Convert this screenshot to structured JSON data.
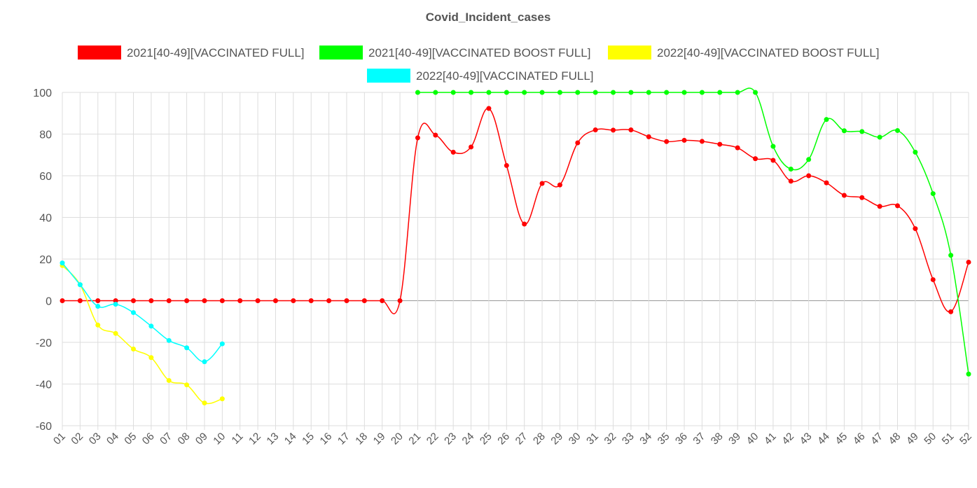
{
  "chart_data": {
    "type": "line",
    "title": "Covid_Incident_cases",
    "xlabel": "",
    "ylabel": "",
    "ylim": [
      -60,
      100
    ],
    "yticks": [
      100,
      80,
      60,
      40,
      20,
      0,
      -20,
      -40,
      -60
    ],
    "grid": true,
    "legend_position": "top",
    "categories": [
      "01",
      "02",
      "03",
      "04",
      "05",
      "06",
      "07",
      "08",
      "09",
      "10",
      "11",
      "12",
      "13",
      "14",
      "15",
      "16",
      "17",
      "18",
      "19",
      "20",
      "21",
      "22",
      "23",
      "24",
      "25",
      "26",
      "27",
      "28",
      "29",
      "30",
      "31",
      "32",
      "33",
      "34",
      "35",
      "36",
      "37",
      "38",
      "39",
      "40",
      "41",
      "42",
      "43",
      "44",
      "45",
      "46",
      "47",
      "48",
      "49",
      "50",
      "51",
      "52"
    ],
    "series": [
      {
        "name": "2021[40-49][VACCINATED FULL]",
        "color": "#ff0000",
        "values": [
          0,
          0,
          0,
          0,
          0,
          0,
          0,
          0,
          0,
          0,
          0,
          0,
          0,
          0,
          0,
          0,
          0,
          0,
          0,
          0,
          78.2,
          79.5,
          71.3,
          73.8,
          92.3,
          64.9,
          36.8,
          56.3,
          55.6,
          75.8,
          82,
          81.9,
          82,
          78.7,
          76.4,
          77,
          76.5,
          75.1,
          73.4,
          68.2,
          67.4,
          57.4,
          60,
          56.6,
          50.6,
          49.5,
          45.3,
          45.6,
          34.6,
          10.1,
          -5.3,
          18.5
        ]
      },
      {
        "name": "2021[40-49][VACCINATED BOOST FULL]",
        "color": "#00ff00",
        "values": [
          null,
          null,
          null,
          null,
          null,
          null,
          null,
          null,
          null,
          null,
          null,
          null,
          null,
          null,
          null,
          null,
          null,
          null,
          null,
          null,
          100,
          100,
          100,
          100,
          100,
          100,
          100,
          100,
          100,
          100,
          100,
          100,
          100,
          100,
          100,
          100,
          100,
          100,
          100,
          100,
          74.1,
          63.2,
          67.8,
          87,
          81.6,
          81.2,
          78.5,
          81.7,
          71.3,
          51.4,
          21.8,
          -35.2
        ]
      },
      {
        "name": "2022[40-49][VACCINATED BOOST FULL]",
        "color": "#ffff00",
        "values": [
          16.9,
          7.7,
          -11.7,
          -15.7,
          -23.2,
          -27.3,
          -38.3,
          -40.4,
          -49.1,
          -47.1,
          null,
          null,
          null,
          null,
          null,
          null,
          null,
          null,
          null,
          null,
          null,
          null,
          null,
          null,
          null,
          null,
          null,
          null,
          null,
          null,
          null,
          null,
          null,
          null,
          null,
          null,
          null,
          null,
          null,
          null,
          null,
          null,
          null,
          null,
          null,
          null,
          null,
          null,
          null,
          null,
          null,
          null
        ]
      },
      {
        "name": "2022[40-49][VACCINATED FULL]",
        "color": "#00ffff",
        "values": [
          18.1,
          7.7,
          -2.7,
          -1.7,
          -5.7,
          -12.2,
          -19.1,
          -22.6,
          -29.3,
          -20.7,
          null,
          null,
          null,
          null,
          null,
          null,
          null,
          null,
          null,
          null,
          null,
          null,
          null,
          null,
          null,
          null,
          null,
          null,
          null,
          null,
          null,
          null,
          null,
          null,
          null,
          null,
          null,
          null,
          null,
          null,
          null,
          null,
          null,
          null,
          null,
          null,
          null,
          null,
          null,
          null,
          null,
          null
        ]
      }
    ]
  }
}
